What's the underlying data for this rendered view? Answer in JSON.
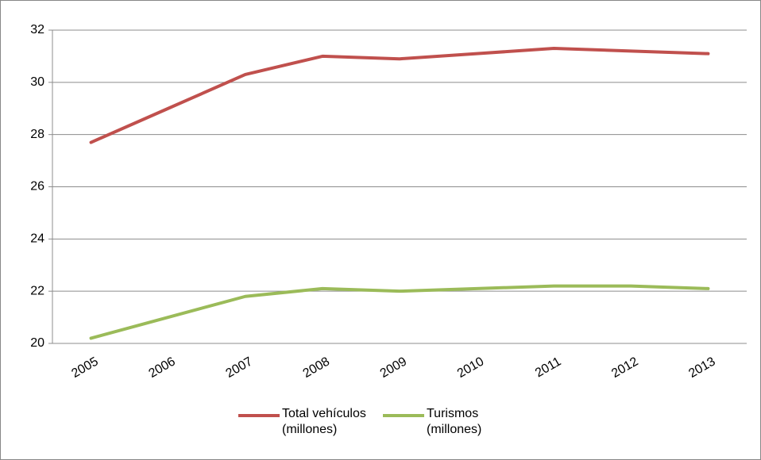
{
  "chart_data": {
    "type": "line",
    "categories": [
      "2005",
      "2006",
      "2007",
      "2008",
      "2009",
      "2010",
      "2011",
      "2012",
      "2013"
    ],
    "series": [
      {
        "name": "Total vehículos (millones)",
        "color": "#c0504d",
        "values": [
          27.7,
          29.0,
          30.3,
          31.0,
          30.9,
          31.1,
          31.3,
          31.2,
          31.1
        ]
      },
      {
        "name": "Turismos (millones)",
        "color": "#9bbb59",
        "values": [
          20.2,
          21.0,
          21.8,
          22.1,
          22.0,
          22.1,
          22.2,
          22.2,
          22.1
        ]
      }
    ],
    "ylim": [
      20,
      32
    ],
    "yticks": [
      20,
      22,
      24,
      26,
      28,
      30,
      32
    ],
    "grid": true,
    "legend": "bottom"
  }
}
